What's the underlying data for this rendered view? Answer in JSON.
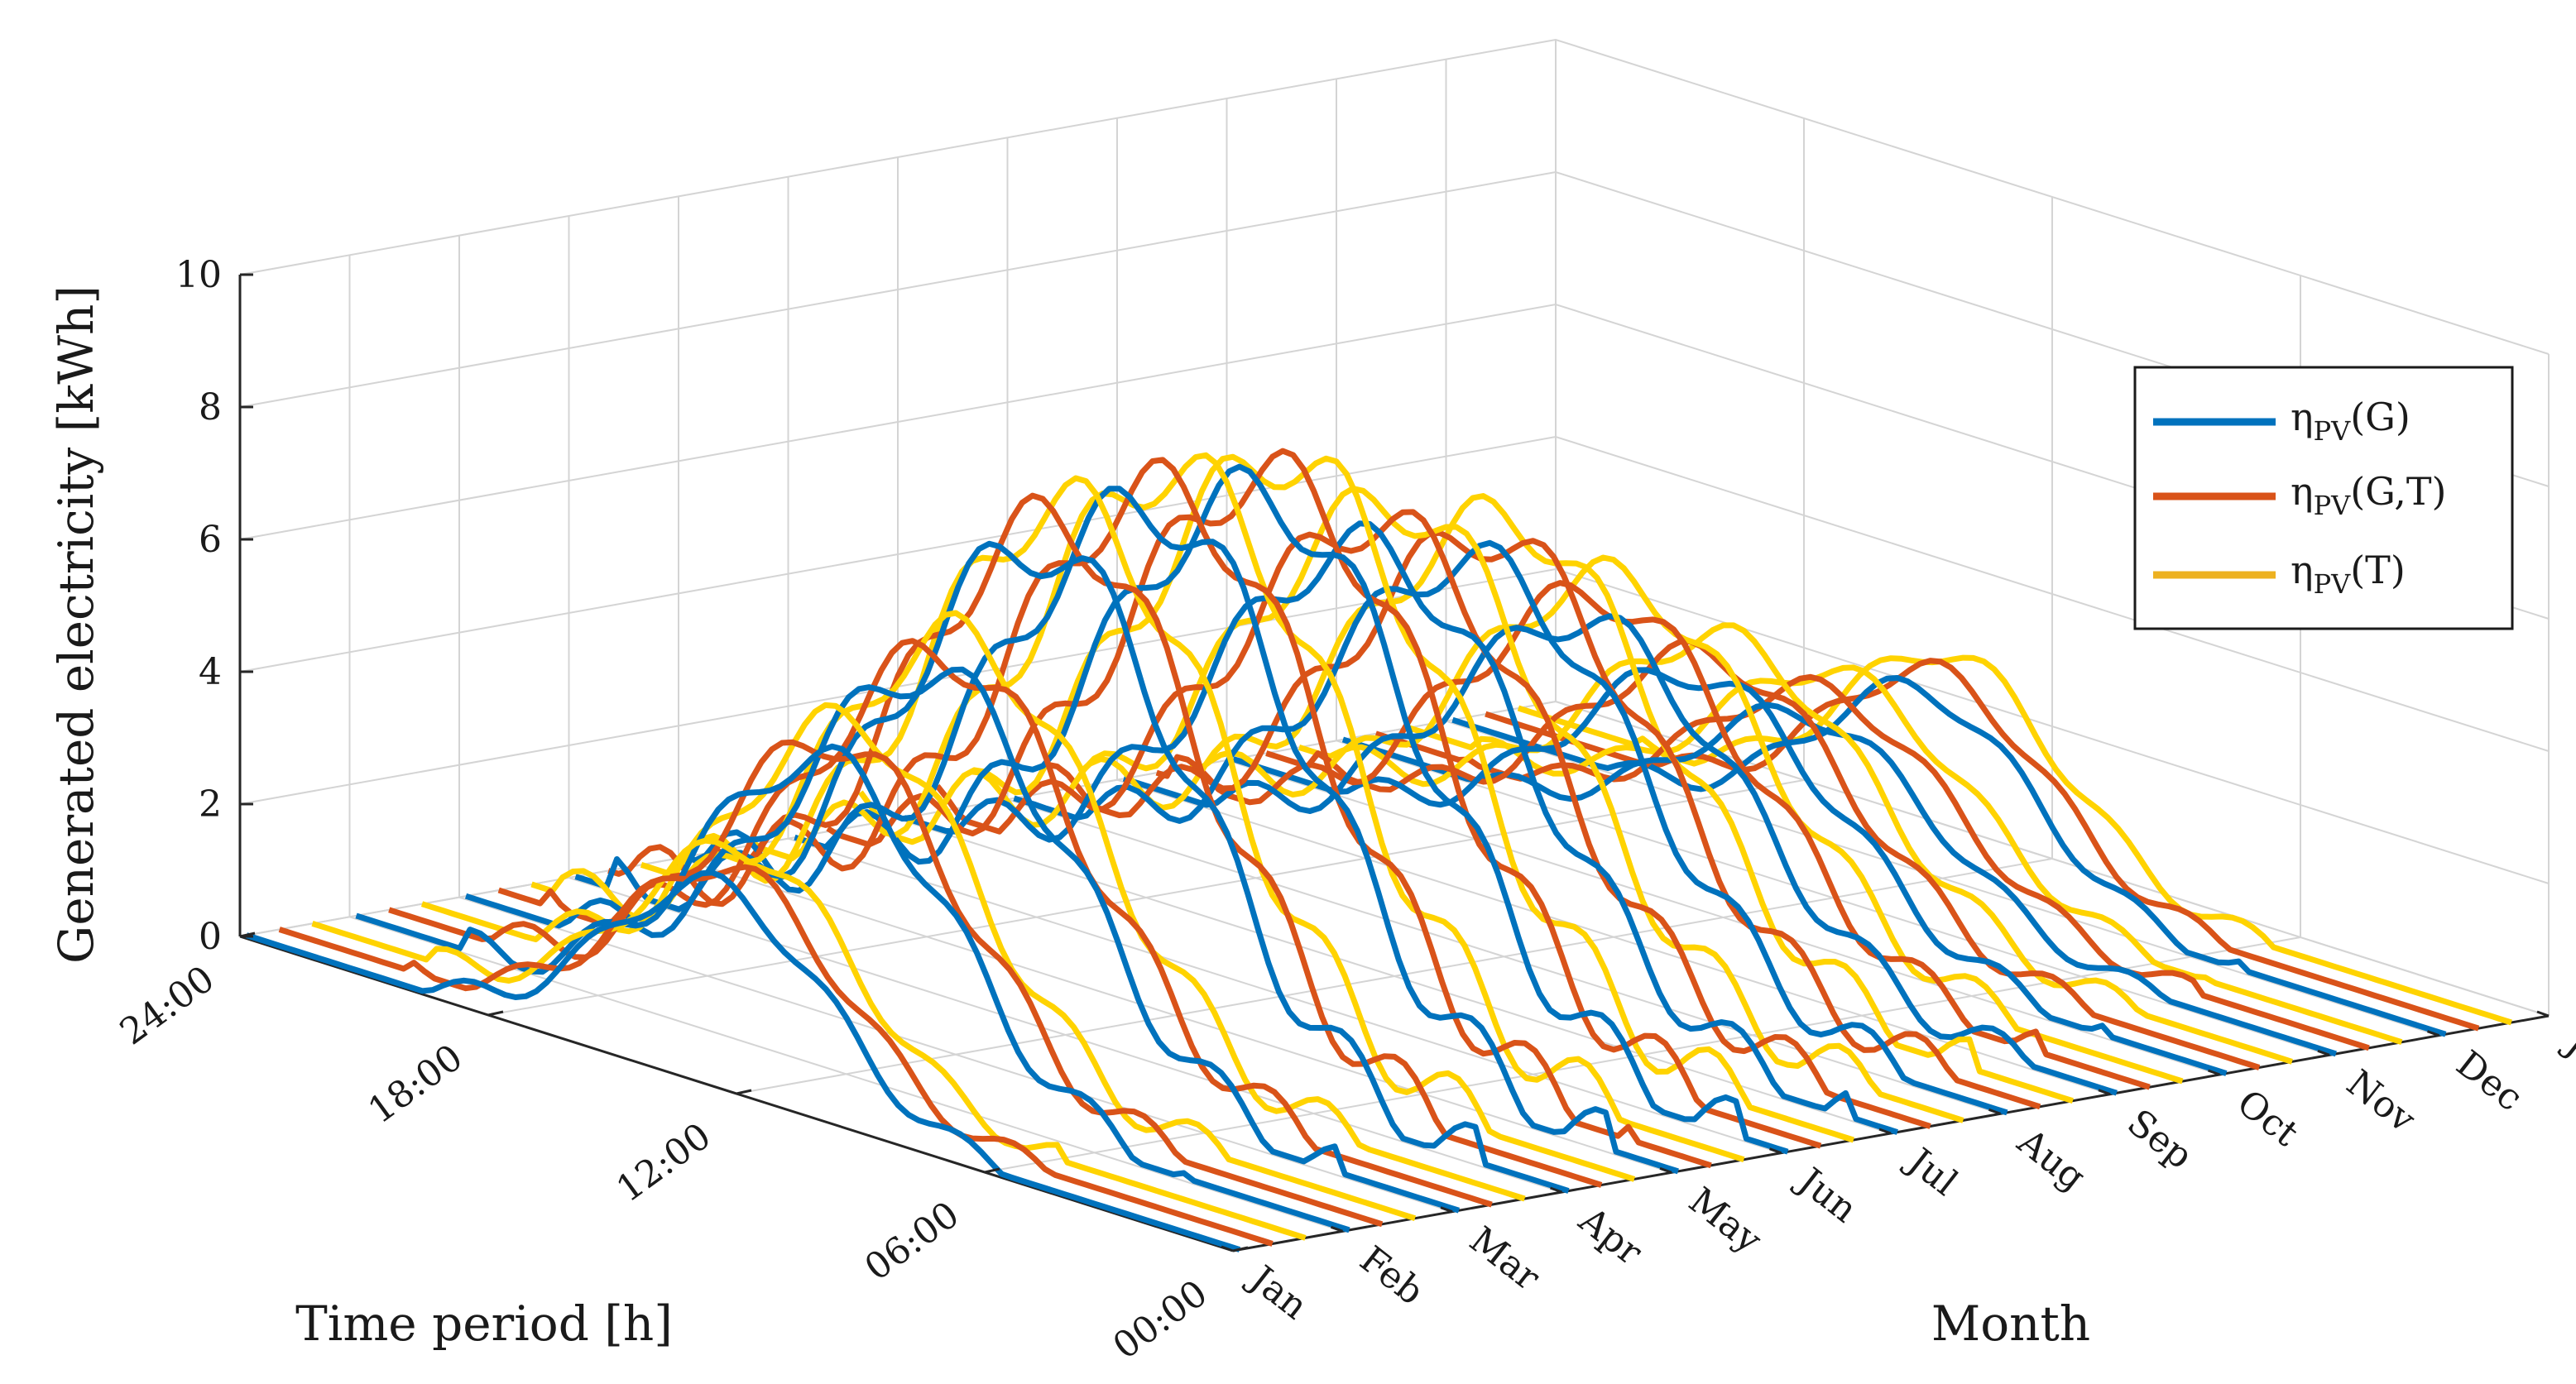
{
  "chart_data": {
    "type": "line",
    "subtype": "3d-waterfall",
    "title": "",
    "xlabel": "Month",
    "ylabel": "Time period [h]",
    "zlabel": "Generated electricity [kWh]",
    "zlim": [
      0,
      10
    ],
    "z_ticks": [
      "0",
      "2",
      "4",
      "6",
      "8",
      "10"
    ],
    "month_ticks": [
      "Jan",
      "Feb",
      "Mar",
      "Apr",
      "May",
      "Jun",
      "Jul",
      "Aug",
      "Sep",
      "Oct",
      "Nov",
      "Dec",
      "Jan"
    ],
    "time_ticks": [
      "00:00",
      "06:00",
      "12:00",
      "18:00",
      "24:00"
    ],
    "grid": true,
    "legend_position": "right",
    "series": [
      {
        "key": "G",
        "name_sub": "PV",
        "name_arg": "(G)",
        "color": "#0072BD",
        "monthly_peak_kwh": [
          3.0,
          4.6,
          5.6,
          7.2,
          7.5,
          7.4,
          6.3,
          5.8,
          4.6,
          3.5,
          2.6,
          2.7
        ]
      },
      {
        "key": "GT",
        "name_sub": "PV",
        "name_arg": "(G,T)",
        "color": "#D95319",
        "monthly_peak_kwh": [
          3.1,
          4.7,
          5.7,
          7.4,
          7.6,
          7.5,
          6.5,
          6.0,
          4.8,
          3.6,
          2.8,
          2.8
        ]
      },
      {
        "key": "T",
        "name_sub": "PV",
        "name_arg": "(T)",
        "color": "#FFD300",
        "monthly_peak_kwh": [
          3.2,
          4.8,
          5.8,
          7.5,
          7.7,
          7.6,
          6.6,
          6.1,
          4.9,
          3.7,
          2.9,
          2.9
        ]
      }
    ]
  }
}
